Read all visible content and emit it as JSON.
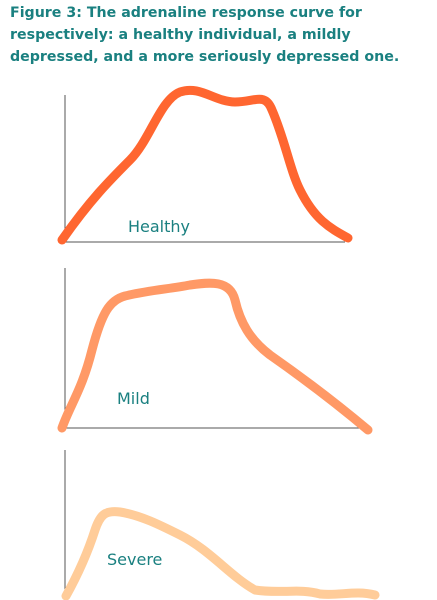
{
  "title_lines": [
    "Figure 3: The adrenaline response curve for",
    "respectively: a healthy individual, a mildly",
    "depressed, and a more seriously depressed one."
  ],
  "panels": [
    {
      "label": "Healthy"
    },
    {
      "label": "Mild"
    },
    {
      "label": "Severe"
    }
  ]
}
